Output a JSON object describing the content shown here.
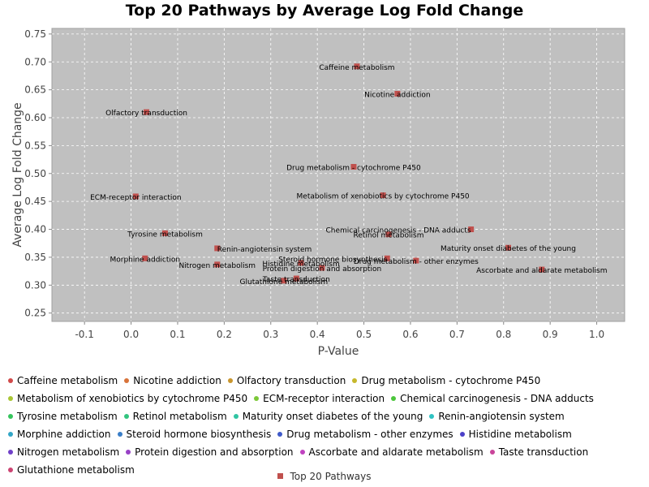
{
  "chart_data": {
    "type": "scatter",
    "title": "Top 20 Pathways by Average Log Fold Change",
    "xlabel": "P-Value",
    "ylabel": "Average Log Fold Change",
    "xlim": [
      -0.17,
      1.06
    ],
    "ylim": [
      0.235,
      0.76
    ],
    "xticks": [
      -0.1,
      0.0,
      0.1,
      0.2,
      0.3,
      0.4,
      0.5,
      0.6,
      0.7,
      0.8,
      0.9,
      1.0
    ],
    "yticks": [
      0.25,
      0.3,
      0.35,
      0.4,
      0.45,
      0.5,
      0.55,
      0.6,
      0.65,
      0.7,
      0.75
    ],
    "xtick_labels": [
      "-0.1",
      "0.0",
      "0.1",
      "0.2",
      "0.3",
      "0.4",
      "0.5",
      "0.6",
      "0.7",
      "0.8",
      "0.9",
      "1.0"
    ],
    "ytick_labels": [
      "0.25",
      "0.30",
      "0.35",
      "0.40",
      "0.45",
      "0.50",
      "0.55",
      "0.60",
      "0.65",
      "0.70",
      "0.75"
    ],
    "grid": true,
    "plot_background": "#c0c0c0",
    "marker_color": "#c0504d",
    "series_name": "Top 20 Pathways",
    "points": [
      {
        "label": "Caffeine metabolism",
        "x": 0.485,
        "y": 0.692,
        "anchor": "middle"
      },
      {
        "label": "Nicotine addiction",
        "x": 0.572,
        "y": 0.643,
        "anchor": "middle"
      },
      {
        "label": "Olfactory transduction",
        "x": 0.033,
        "y": 0.61,
        "anchor": "middle"
      },
      {
        "label": "Drug metabolism - cytochrome P450",
        "x": 0.478,
        "y": 0.512,
        "anchor": "middle"
      },
      {
        "label": "Metabolism of xenobiotics by cytochrome P450",
        "x": 0.541,
        "y": 0.461,
        "anchor": "middle"
      },
      {
        "label": "ECM-receptor interaction",
        "x": 0.01,
        "y": 0.459,
        "anchor": "middle"
      },
      {
        "label": "Chemical carcinogenesis - DNA adducts",
        "x": 0.73,
        "y": 0.4,
        "anchor": "end"
      },
      {
        "label": "Tyrosine metabolism",
        "x": 0.073,
        "y": 0.393,
        "anchor": "middle"
      },
      {
        "label": "Retinol metabolism",
        "x": 0.553,
        "y": 0.391,
        "anchor": "middle"
      },
      {
        "label": "Maturity onset diabetes of the young",
        "x": 0.81,
        "y": 0.367,
        "anchor": "middle"
      },
      {
        "label": "Renin-angiotensin system",
        "x": 0.185,
        "y": 0.366,
        "anchor": "start"
      },
      {
        "label": "Morphine addiction",
        "x": 0.03,
        "y": 0.348,
        "anchor": "middle"
      },
      {
        "label": "Steroid hormone biosynthesis",
        "x": 0.55,
        "y": 0.348,
        "anchor": "end"
      },
      {
        "label": "Drug metabolism - other enzymes",
        "x": 0.612,
        "y": 0.344,
        "anchor": "middle"
      },
      {
        "label": "Histidine metabolism",
        "x": 0.365,
        "y": 0.34,
        "anchor": "middle"
      },
      {
        "label": "Nitrogen metabolism",
        "x": 0.185,
        "y": 0.337,
        "anchor": "middle"
      },
      {
        "label": "Protein digestion and absorption",
        "x": 0.41,
        "y": 0.331,
        "anchor": "middle"
      },
      {
        "label": "Ascorbate and aldarate metabolism",
        "x": 0.882,
        "y": 0.328,
        "anchor": "middle"
      },
      {
        "label": "Taste transduction",
        "x": 0.355,
        "y": 0.312,
        "anchor": "middle"
      },
      {
        "label": "Glutathione metabolism",
        "x": 0.328,
        "y": 0.308,
        "anchor": "middle"
      }
    ],
    "legend_items": [
      {
        "label": "Caffeine metabolism",
        "color": "#d14a4a"
      },
      {
        "label": "Nicotine addiction",
        "color": "#d8733a"
      },
      {
        "label": "Olfactory transduction",
        "color": "#c9962e"
      },
      {
        "label": "Drug metabolism - cytochrome P450",
        "color": "#c6b82c"
      },
      {
        "label": "Metabolism of xenobiotics by cytochrome P450",
        "color": "#a9c634"
      },
      {
        "label": "ECM-receptor interaction",
        "color": "#7cc838"
      },
      {
        "label": "Chemical carcinogenesis - DNA adducts",
        "color": "#4cc63c"
      },
      {
        "label": "Tyrosine metabolism",
        "color": "#35c45c"
      },
      {
        "label": "Retinol metabolism",
        "color": "#33c47f"
      },
      {
        "label": "Maturity onset diabetes of the young",
        "color": "#30c4a2"
      },
      {
        "label": "Renin-angiotensin system",
        "color": "#2fc2c2"
      },
      {
        "label": "Morphine addiction",
        "color": "#32a6c6"
      },
      {
        "label": "Steroid hormone biosynthesis",
        "color": "#3a7ec8"
      },
      {
        "label": "Drug metabolism - other enzymes",
        "color": "#3f5ac9"
      },
      {
        "label": "Histidine metabolism",
        "color": "#4b40c8"
      },
      {
        "label": "Nitrogen metabolism",
        "color": "#7040c8"
      },
      {
        "label": "Protein digestion and absorption",
        "color": "#9841c6"
      },
      {
        "label": "Ascorbate and aldarate metabolism",
        "color": "#c042c0"
      },
      {
        "label": "Taste transduction",
        "color": "#c9449a"
      },
      {
        "label": "Glutathione metabolism",
        "color": "#cc4472"
      }
    ]
  }
}
